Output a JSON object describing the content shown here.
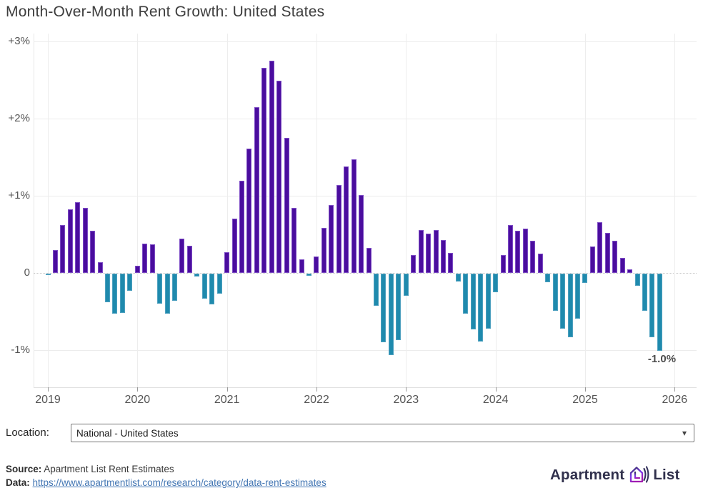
{
  "header": {
    "title": "Month-Over-Month Rent Growth: United States"
  },
  "chart_data": {
    "type": "bar",
    "title": "Month-Over-Month Rent Growth: United States",
    "xlabel": "",
    "ylabel": "",
    "unit": "%",
    "ylim": [
      -1.48,
      3.1
    ],
    "grid": true,
    "legend": "none",
    "y_ticks": [
      {
        "label": "+3%",
        "value": 3
      },
      {
        "label": "+2%",
        "value": 2
      },
      {
        "label": "+1%",
        "value": 1
      },
      {
        "label": "0",
        "value": 0
      },
      {
        "label": "-1%",
        "value": -1
      }
    ],
    "x_ticks": [
      {
        "label": "2019"
      },
      {
        "label": "2020"
      },
      {
        "label": "2021"
      },
      {
        "label": "2022"
      },
      {
        "label": "2023"
      },
      {
        "label": "2024"
      },
      {
        "label": "2025"
      },
      {
        "label": "2026"
      }
    ],
    "colors": {
      "positive": "#4a0d9e",
      "positive_border": "#7c4bc4",
      "negative": "#1f8aad",
      "negative_border": "#4da0bf"
    },
    "series": [
      {
        "name": "Month-over-month rent growth",
        "start_month": "2019-01",
        "values": [
          -0.02,
          0.3,
          0.62,
          0.82,
          0.92,
          0.84,
          0.55,
          0.14,
          -0.37,
          -0.52,
          -0.51,
          -0.22,
          0.09,
          0.38,
          0.37,
          -0.39,
          -0.52,
          -0.35,
          0.44,
          0.35,
          -0.04,
          -0.32,
          -0.4,
          -0.26,
          0.27,
          0.7,
          1.19,
          1.61,
          2.15,
          2.66,
          2.75,
          2.49,
          1.75,
          0.84,
          0.18,
          -0.03,
          0.21,
          0.58,
          0.88,
          1.14,
          1.38,
          1.47,
          1.01,
          0.32,
          -0.42,
          -0.89,
          -1.06,
          -0.86,
          -0.29,
          0.23,
          0.56,
          0.51,
          0.56,
          0.43,
          0.26,
          -0.1,
          -0.52,
          -0.72,
          -0.88,
          -0.71,
          -0.24,
          0.23,
          0.62,
          0.55,
          0.57,
          0.42,
          0.25,
          -0.11,
          -0.48,
          -0.71,
          -0.82,
          -0.58,
          -0.12,
          0.34,
          0.66,
          0.52,
          0.42,
          0.19,
          0.05,
          -0.16,
          -0.48,
          -0.82,
          -1.0
        ]
      }
    ],
    "annotation": {
      "text": "-1.0%",
      "month": "2025-11",
      "value": -1.0
    }
  },
  "controls": {
    "location_label": "Location:",
    "location_value": "National - United States",
    "dropdown_arrow": "▾"
  },
  "footer": {
    "source_label": "Source:",
    "source_value": "Apartment List Rent Estimates",
    "data_label": "Data:",
    "data_link": "https://www.apartmentlist.com/research/category/data-rent-estimates",
    "logo": {
      "left": "Apartment",
      "right": "List",
      "icon": "apartment-list-house-icon"
    }
  }
}
